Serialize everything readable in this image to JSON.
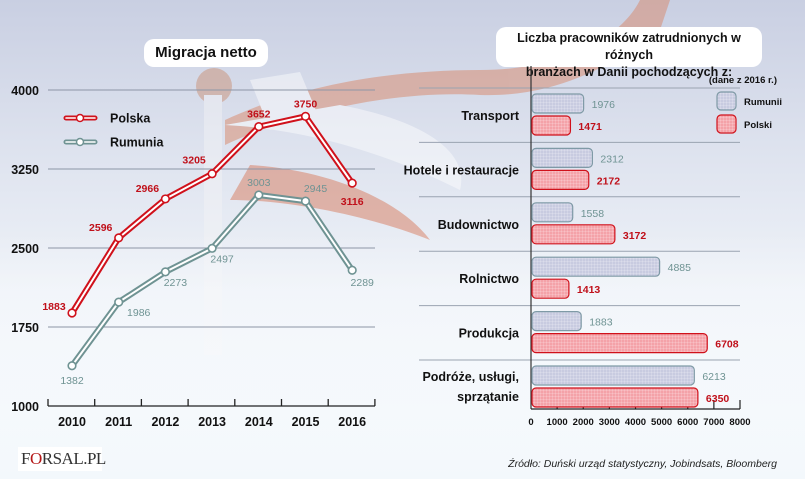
{
  "chart_data": [
    {
      "type": "line",
      "title": "Migracja netto",
      "xlabel": "",
      "ylabel": "",
      "x": [
        "2010",
        "2011",
        "2012",
        "2013",
        "2014",
        "2015",
        "2016"
      ],
      "y_ticks": [
        "4000",
        "3250",
        "2500",
        "1750",
        "1000"
      ],
      "y_tick_values": [
        4000,
        3250,
        2500,
        1750,
        1000
      ],
      "ylim": [
        1000,
        4000
      ],
      "grid": true,
      "legend_position": "top-left",
      "series": [
        {
          "name": "Polska",
          "color": "#d0111b",
          "values": [
            1883,
            2596,
            2966,
            3205,
            3652,
            3750,
            3116
          ]
        },
        {
          "name": "Rumunia",
          "color": "#6f9393",
          "values": [
            1382,
            1986,
            2273,
            2497,
            3003,
            2945,
            2289
          ]
        }
      ]
    },
    {
      "type": "bar",
      "orientation": "horizontal",
      "title": "Liczba pracowników zatrudnionych w różnych branżach w Danii pochodzących z:",
      "title_lines": [
        "Liczba pracowników zatrudnionych w różnych",
        "branżach w Danii pochodzących z:"
      ],
      "subtitle": "(dane z 2016 r.)",
      "categories": [
        "Transport",
        "Hotele i restauracje",
        "Budownictwo",
        "Rolnictwo",
        "Produkcja",
        "Podróże, usługi, sprzątanie"
      ],
      "category_lines": [
        [
          "Transport"
        ],
        [
          "Hotele i restauracje"
        ],
        [
          "Budownictwo"
        ],
        [
          "Rolnictwo"
        ],
        [
          "Produkcja"
        ],
        [
          "Podróże, usługi,",
          "sprzątanie"
        ]
      ],
      "x_ticks": [
        "0",
        "1000",
        "2000",
        "3000",
        "4000",
        "5000",
        "6000",
        "7000",
        "8000"
      ],
      "xlim": [
        0,
        8000
      ],
      "legend_position": "top-right",
      "series": [
        {
          "name": "Rumunii",
          "fill": "#c8cbe0",
          "stroke": "#7f9aa6",
          "label_color": "#6f9393",
          "values": [
            1976,
            2312,
            1558,
            4885,
            1883,
            6213
          ]
        },
        {
          "name": "Polski",
          "fill": "#f4a2a8",
          "stroke": "#d0111b",
          "label_color": "#c0101a",
          "values": [
            1471,
            2172,
            3172,
            1413,
            6708,
            6350
          ]
        }
      ]
    }
  ],
  "footer": {
    "logo_prefix": "F",
    "logo_o": "O",
    "logo_suffix": "RSAL.PL",
    "source": "Źródło: Duński urząd statystyczny, Jobindsats, Bloomberg"
  }
}
